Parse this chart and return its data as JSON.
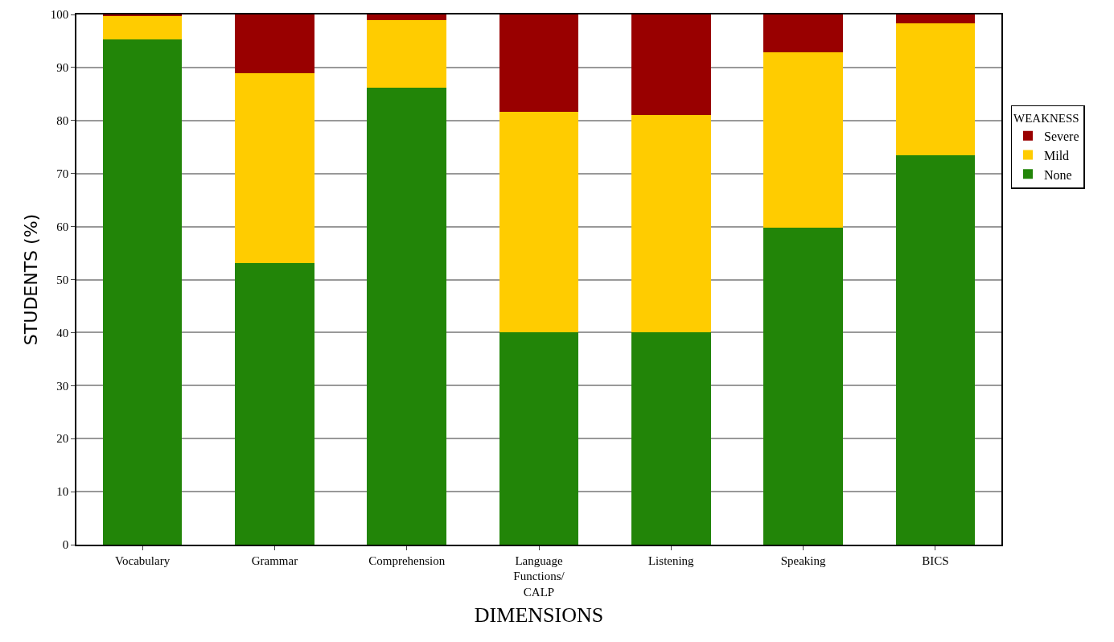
{
  "chart_data": {
    "type": "bar",
    "stacked": true,
    "categories": [
      "Vocabulary",
      "Grammar",
      "Comprehension",
      "Language\nFunctions/\nCALP",
      "Listening",
      "Speaking",
      "BICS"
    ],
    "series": [
      {
        "name": "None",
        "color": "#228508",
        "values": [
          95.3,
          53.1,
          86.2,
          40.1,
          40.1,
          59.8,
          73.4
        ]
      },
      {
        "name": "Mild",
        "color": "#ffcc00",
        "values": [
          4.4,
          35.8,
          12.7,
          41.5,
          40.9,
          33.1,
          24.9
        ]
      },
      {
        "name": "Severe",
        "color": "#990000",
        "values": [
          0.3,
          11.1,
          1.1,
          18.4,
          19.0,
          7.1,
          1.7
        ]
      }
    ],
    "xlabel": "DIMENSIONS",
    "ylabel": "STUDENTS (%)",
    "legend_title": "WEAKNESS",
    "ylim": [
      0,
      100
    ],
    "yticks": [
      0,
      10,
      20,
      30,
      40,
      50,
      60,
      70,
      80,
      90,
      100
    ],
    "grid": "y",
    "legend": "right"
  }
}
